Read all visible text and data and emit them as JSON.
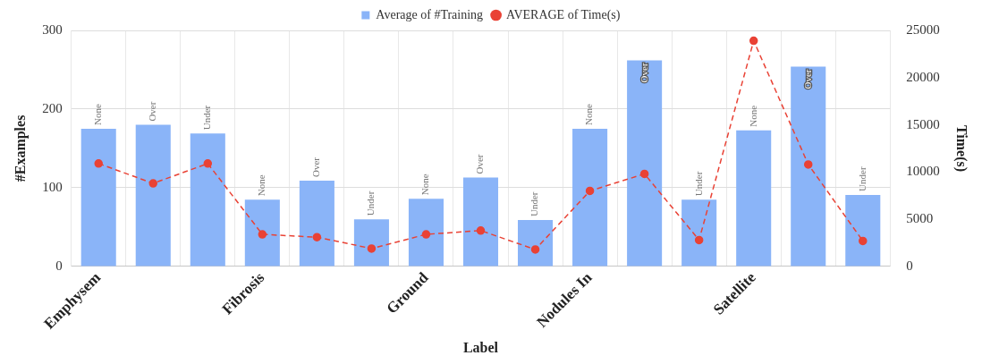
{
  "chart_data": {
    "type": "bar",
    "xlabel": "Label",
    "ylabel": "#Examples",
    "y2label": "Time(s)",
    "categories": [
      "Emphysem",
      null,
      null,
      "Fibrosis",
      null,
      null,
      "Ground",
      null,
      null,
      "Nodules In",
      null,
      null,
      "Satellite",
      null,
      null
    ],
    "series": [
      {
        "name": "Average of #Training",
        "color": "#8ab4f8",
        "values": [
          175,
          180,
          169,
          85,
          109,
          60,
          86,
          113,
          59,
          175,
          262,
          85,
          173,
          254,
          91
        ],
        "value_labels": [
          "None",
          "Over",
          "Under",
          "None",
          "Over",
          "Under",
          "None",
          "Over",
          "Under",
          "None",
          "Over",
          "Under",
          "None",
          "Over",
          "Under"
        ]
      },
      {
        "name": "AVERAGE of Time(s)",
        "type": "line",
        "axis": "y2",
        "color": "#e94235",
        "line_style": "dashed",
        "marker": "circle",
        "values": [
          10900,
          8800,
          10900,
          3400,
          3100,
          1900,
          3400,
          3800,
          1800,
          8000,
          9800,
          2800,
          23900,
          10800,
          2700
        ]
      }
    ],
    "ylim": [
      0,
      300
    ],
    "yticks": [
      0,
      100,
      200,
      300
    ],
    "y2lim": [
      0,
      25000
    ],
    "y2ticks": [
      0,
      5000,
      10000,
      15000,
      20000,
      25000
    ],
    "grid": true,
    "legend": "top"
  }
}
